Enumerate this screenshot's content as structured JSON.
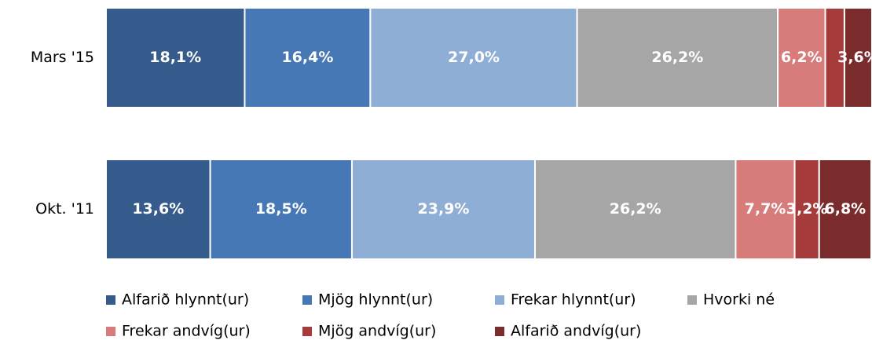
{
  "chart_data": {
    "type": "stacked-bar-horizontal",
    "categories": [
      "Mars '15",
      "Okt. '11"
    ],
    "xlim": [
      0,
      100
    ],
    "series": [
      {
        "name": "Alfarið hlynnt(ur)",
        "color": "#355c8c",
        "values": [
          18.1,
          13.6
        ],
        "value_labels": [
          "18,1%",
          "13,6%"
        ]
      },
      {
        "name": "Mjög hlynnt(ur)",
        "color": "#4778b6",
        "values": [
          16.4,
          18.5
        ],
        "value_labels": [
          "16,4%",
          "18,5%"
        ]
      },
      {
        "name": "Frekar hlynnt(ur)",
        "color": "#8faed6",
        "values": [
          27.0,
          23.9
        ],
        "value_labels": [
          "27,0%",
          "23,9%"
        ]
      },
      {
        "name": "Hvorki né",
        "color": "#a6a6a6",
        "values": [
          26.2,
          26.2
        ],
        "value_labels": [
          "26,2%",
          "26,2%"
        ]
      },
      {
        "name": "Frekar andvíg(ur)",
        "color": "#d77c7a",
        "values": [
          6.2,
          7.7
        ],
        "value_labels": [
          "6,2%",
          "7,7%"
        ]
      },
      {
        "name": "Mjög andvíg(ur)",
        "color": "#a53b3a",
        "values": [
          2.5,
          3.2
        ],
        "value_labels": [
          null,
          "3,2%"
        ]
      },
      {
        "name": "Alfarið andvíg(ur)",
        "color": "#7a2b2b",
        "values": [
          3.6,
          6.8
        ],
        "value_labels": [
          "3,6%",
          "6,8%"
        ]
      }
    ]
  }
}
